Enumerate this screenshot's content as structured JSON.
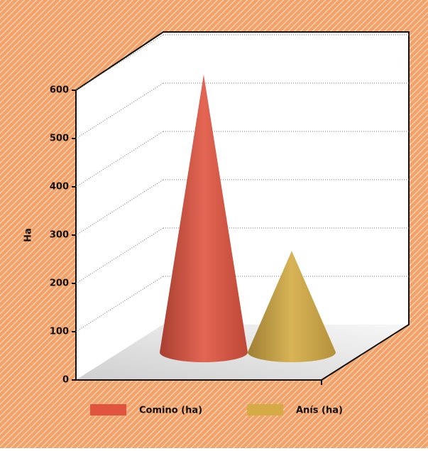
{
  "chart_data": {
    "type": "cone",
    "y_label": "Ha",
    "ylim": [
      0,
      600
    ],
    "yticks": [
      0,
      100,
      200,
      300,
      400,
      500,
      600
    ],
    "grid": true,
    "legend": "bottom",
    "series": [
      {
        "name": "Comino (ha)",
        "color": "#e05440",
        "values": [
          575
        ]
      },
      {
        "name": "Anís (ha)",
        "color": "#d4ab44",
        "values": [
          210
        ]
      }
    ]
  }
}
